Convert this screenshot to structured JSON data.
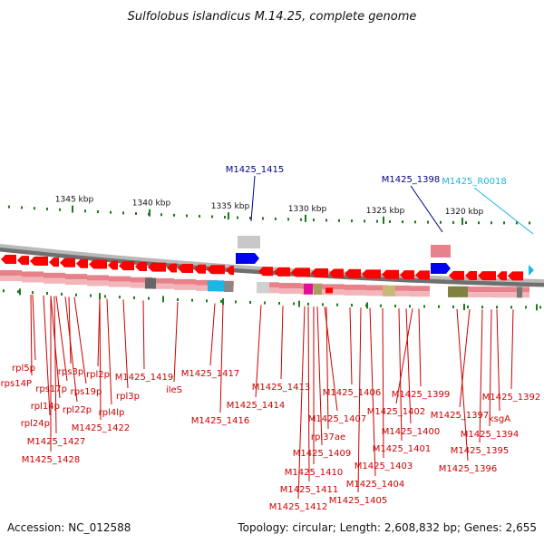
{
  "title": "Sulfolobus islandicus M.14.25, complete genome",
  "footer": {
    "accession": "Accession: NC_012588",
    "summary": "Topology: circular; Length: 2,608,832 bp; Genes: 2,655"
  },
  "colors": {
    "backbone": "#9a9a9a",
    "gene_arrow": "#ff0000",
    "gene_label": "#cc0000",
    "track_pink": "#e8828a",
    "track_pink_light": "#f2b6ba",
    "callout_dark": "#00008b",
    "callout_light": "#19b6e6",
    "rna_blue": "#0000ee",
    "rna_cyan": "#19b6e6",
    "tick_green": "#1c7a1c"
  },
  "scale_ticks": [
    "1345 kbp",
    "1340 kbp",
    "1335 kbp",
    "1330 kbp",
    "1325 kbp",
    "1320 kbp"
  ],
  "callouts": [
    {
      "name": "M1425_1415",
      "color": "callout_dark"
    },
    {
      "name": "M1425_1398",
      "color": "callout_dark"
    },
    {
      "name": "M1425_R0018",
      "color": "callout_light"
    }
  ],
  "gene_labels": [
    "rpl5p",
    "rps14P",
    "rps17p",
    "rpl14p",
    "rpl24p",
    "M1425_1427",
    "M1425_1428",
    "rps3p",
    "rps19p",
    "rpl22p",
    "rpl2p",
    "rpl4lp",
    "M1425_1422",
    "rpl3p",
    "M1425_1419",
    "ileS",
    "M1425_1417",
    "M1425_1416",
    "M1425_1413",
    "M1425_1414",
    "M1425_1406",
    "M1425_1407",
    "rpl37ae",
    "M1425_1409",
    "M1425_1410",
    "M1425_1411",
    "M1425_1412",
    "M1425_1405",
    "M1425_1404",
    "M1425_1403",
    "M1425_1401",
    "M1425_1400",
    "M1425_1402",
    "M1425_1399",
    "M1425_1392",
    "M1425_1397",
    "ksgA",
    "M1425_1394",
    "M1425_1395",
    "M1425_1396"
  ]
}
